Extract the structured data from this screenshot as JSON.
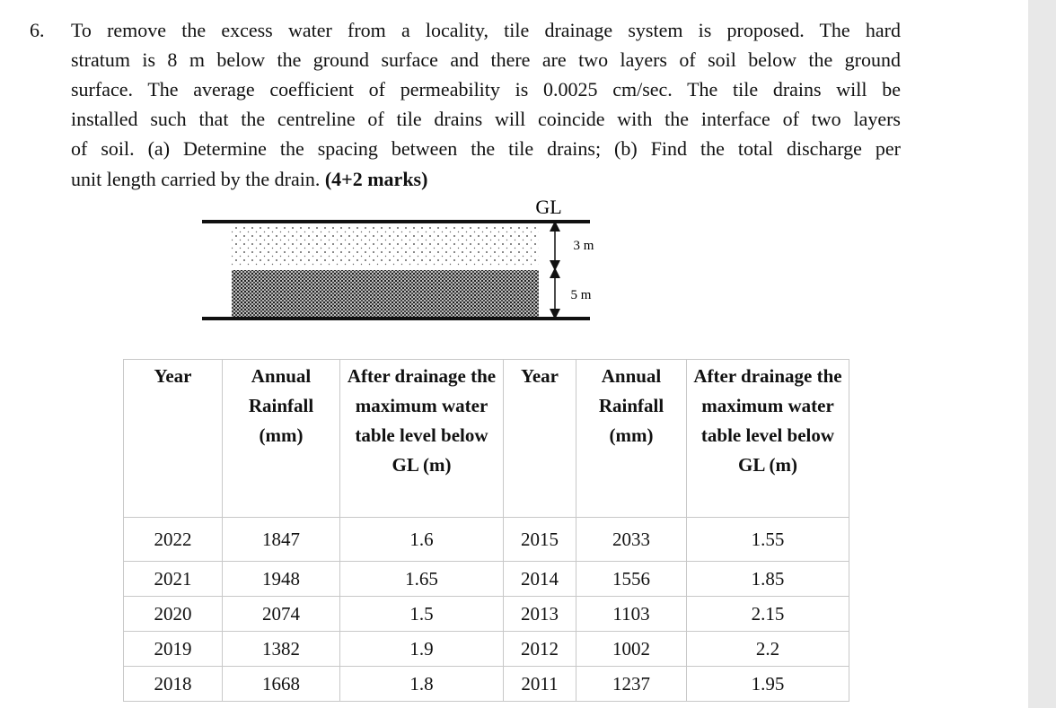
{
  "question": {
    "number": "6.",
    "lines": [
      "To remove the excess water from a locality, tile drainage system is proposed. The hard",
      "stratum is 8 m below the ground surface and there are two layers of soil below the ground",
      "surface. The average coefficient of permeability is 0.0025 cm/sec. The tile drains will be",
      "installed such that the centreline of tile drains will coincide with the interface of two layers",
      "of soil. (a) Determine the spacing between the tile drains; (b) Find the total discharge per"
    ],
    "last_line": "unit length carried by the drain.",
    "marks": "(4+2 marks)"
  },
  "diagram": {
    "ground_label": "GL",
    "top_layer": "3 m",
    "bottom_layer": "5 m"
  },
  "table": {
    "headers": [
      "Year",
      "Annual Rainfall (mm)",
      "After drainage the maximum water table level below GL (m)",
      "Year",
      "Annual Rainfall (mm)",
      "After drainage the maximum water table level below GL (m)"
    ],
    "rows": [
      [
        2022,
        1847,
        1.6,
        2015,
        2033,
        1.55
      ],
      [
        2021,
        1948,
        1.65,
        2014,
        1556,
        1.85
      ],
      [
        2020,
        2074,
        1.5,
        2013,
        1103,
        2.15
      ],
      [
        2019,
        1382,
        1.9,
        2012,
        1002,
        2.2
      ],
      [
        2018,
        1668,
        1.8,
        2011,
        1237,
        1.95
      ]
    ]
  }
}
